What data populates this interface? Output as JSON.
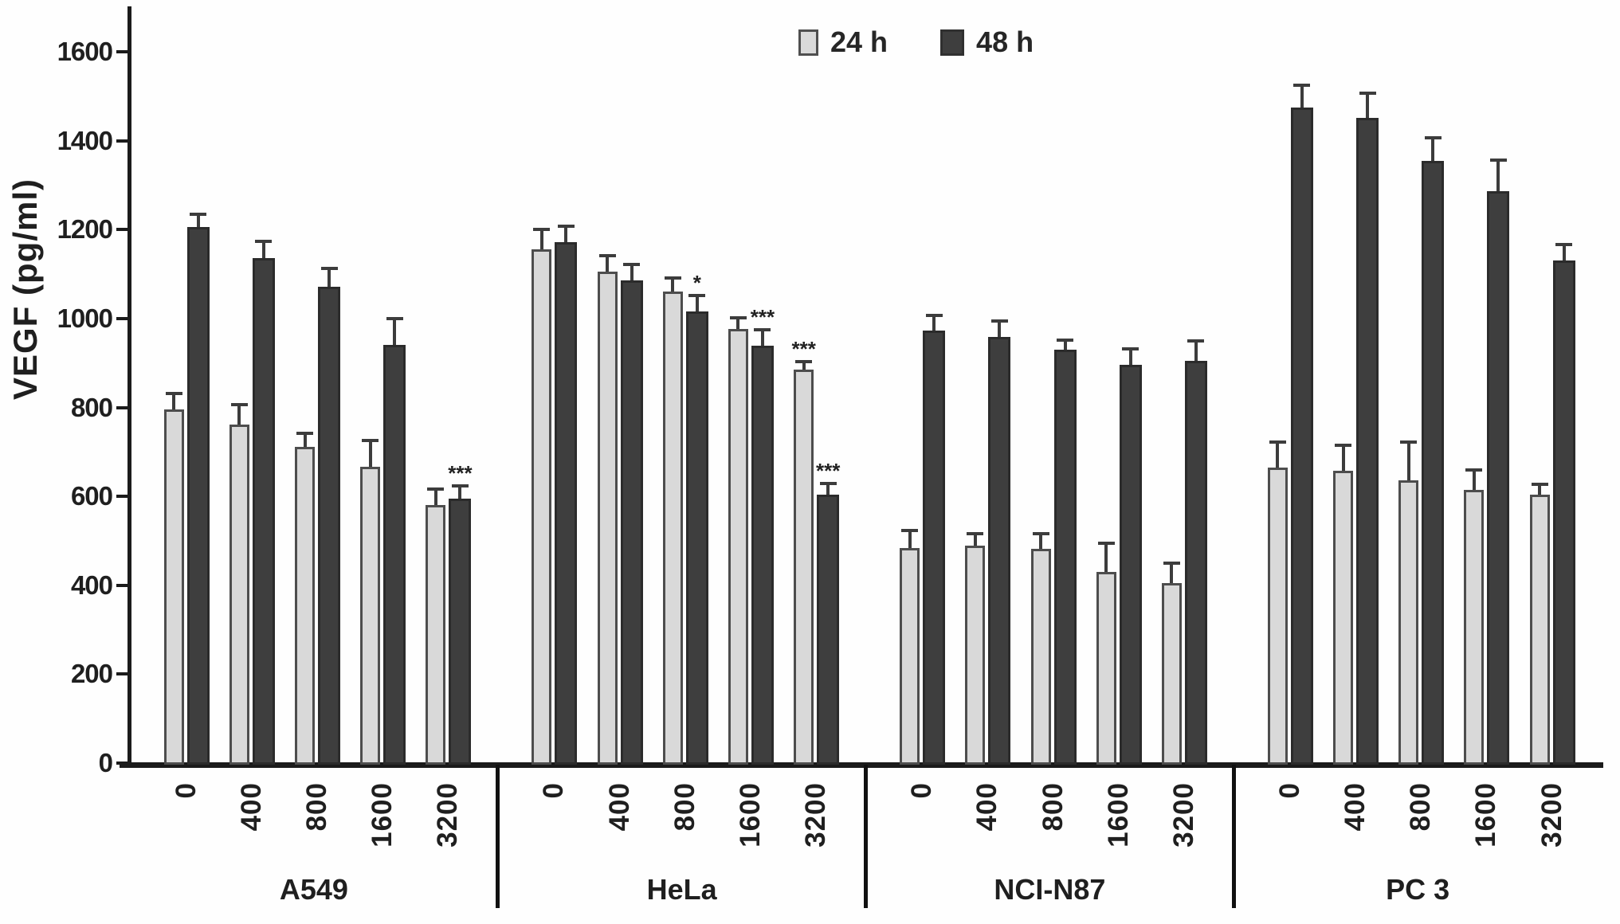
{
  "chart_data": {
    "type": "bar",
    "title": "",
    "ylabel": "VEGF (pg/ml)",
    "xlabel": "",
    "ylim": [
      0,
      1700
    ],
    "yticks": [
      0,
      200,
      400,
      600,
      800,
      1000,
      1200,
      1400,
      1600
    ],
    "legend": [
      {
        "label": "24 h"
      },
      {
        "label": "48 h"
      }
    ],
    "categories": [
      "0",
      "400",
      "800",
      "1600",
      "3200"
    ],
    "legend_position": "top-center",
    "grid": false,
    "groups": [
      {
        "label": "A549",
        "series": [
          {
            "name": "24 h",
            "values": [
              800,
              765,
              715,
              670,
              585
            ],
            "errors": [
              35,
              45,
              30,
              60,
              35
            ],
            "sig": [
              "",
              "",
              "",
              "",
              ""
            ]
          },
          {
            "name": "48 h",
            "values": [
              1210,
              1140,
              1075,
              945,
              598
            ],
            "errors": [
              28,
              38,
              42,
              58,
              30
            ],
            "sig": [
              "",
              "",
              "",
              "",
              "***"
            ]
          }
        ]
      },
      {
        "label": "HeLa",
        "series": [
          {
            "name": "24 h",
            "values": [
              1160,
              1110,
              1065,
              980,
              888
            ],
            "errors": [
              45,
              35,
              30,
              25,
              18
            ],
            "sig": [
              "",
              "",
              "",
              "",
              "***"
            ]
          },
          {
            "name": "48 h",
            "values": [
              1175,
              1090,
              1020,
              943,
              608
            ],
            "errors": [
              36,
              36,
              36,
              36,
              25
            ],
            "sig": [
              "",
              "",
              "*",
              "***",
              "***"
            ]
          }
        ]
      },
      {
        "label": "NCI-N87",
        "series": [
          {
            "name": "24 h",
            "values": [
              487,
              492,
              485,
              434,
              409
            ],
            "errors": [
              40,
              28,
              35,
              65,
              45
            ],
            "sig": [
              "",
              "",
              "",
              "",
              ""
            ]
          },
          {
            "name": "48 h",
            "values": [
              977,
              963,
              933,
              900,
              908
            ],
            "errors": [
              34,
              35,
              22,
              35,
              45
            ],
            "sig": [
              "",
              "",
              "",
              "",
              ""
            ]
          }
        ]
      },
      {
        "label": "PC 3",
        "series": [
          {
            "name": "24 h",
            "values": [
              668,
              662,
              640,
              618,
              608
            ],
            "errors": [
              57,
              57,
              85,
              45,
              22
            ],
            "sig": [
              "",
              "",
              "",
              "",
              ""
            ]
          },
          {
            "name": "48 h",
            "values": [
              1478,
              1455,
              1358,
              1290,
              1135
            ],
            "errors": [
              50,
              55,
              52,
              70,
              36
            ],
            "sig": [
              "",
              "",
              "",
              "",
              ""
            ]
          }
        ]
      }
    ],
    "colors": {
      "bar_24h": "#d9d9d9",
      "bar_24h_border": "#4d4d4d",
      "bar_48h": "#3e3e3e",
      "bar_48h_border": "#2b2b2b",
      "axis": "#1b1b1b",
      "error_bar": "#3c3c3c",
      "text": "#1f1f1f"
    }
  }
}
